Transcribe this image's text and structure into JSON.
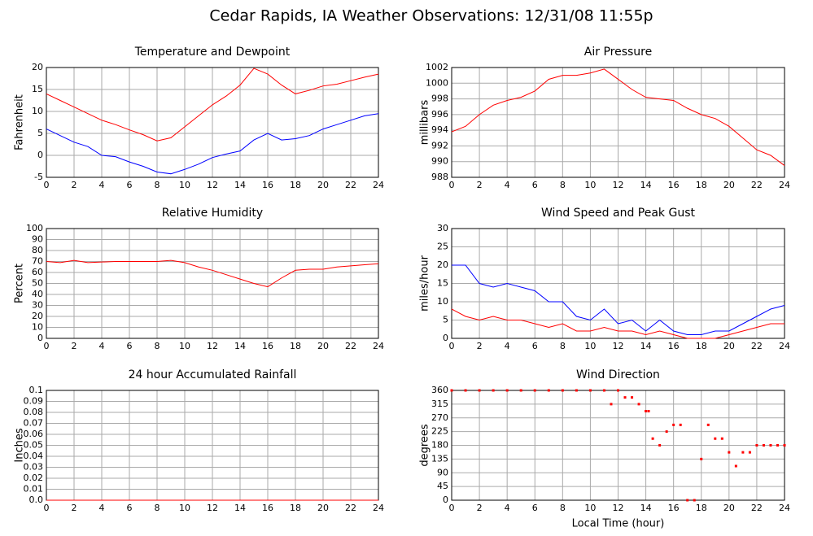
{
  "title": "Cedar Rapids, IA Weather Observations: 12/31/08 11:55p",
  "chart_data": [
    {
      "type": "line",
      "title": "Temperature and Dewpoint",
      "ylabel": "Fahrenheit",
      "x": [
        0,
        1,
        2,
        3,
        4,
        5,
        6,
        7,
        8,
        9,
        10,
        11,
        12,
        13,
        14,
        15,
        16,
        17,
        18,
        19,
        20,
        21,
        22,
        23,
        24
      ],
      "series": [
        {
          "color": "#ff0000",
          "values": [
            14,
            12.5,
            11,
            9.5,
            8,
            7,
            5.8,
            4.7,
            3.3,
            4,
            6.5,
            9,
            11.5,
            13.5,
            16,
            19.8,
            18.5,
            16,
            14,
            14.8,
            15.8,
            16.2,
            17,
            17.8,
            18.5
          ]
        },
        {
          "color": "#0000ff",
          "values": [
            6,
            4.5,
            3,
            2,
            0,
            -0.3,
            -1.5,
            -2.5,
            -3.8,
            -4.2,
            -3.2,
            -2,
            -0.5,
            0.3,
            1,
            3.5,
            5,
            3.5,
            3.8,
            4.5,
            6,
            7,
            8,
            9,
            9.5
          ]
        }
      ],
      "xlim": [
        0,
        24
      ],
      "xticks": [
        0,
        2,
        4,
        6,
        8,
        10,
        12,
        14,
        16,
        18,
        20,
        22,
        24
      ],
      "ylim": [
        -5,
        20
      ],
      "yticks": [
        -5,
        0,
        5,
        10,
        15,
        20
      ],
      "grid": true
    },
    {
      "type": "line",
      "title": "Air Pressure",
      "ylabel": "millibars",
      "x": [
        0,
        1,
        2,
        3,
        4,
        5,
        6,
        7,
        8,
        9,
        10,
        11,
        12,
        13,
        14,
        15,
        16,
        17,
        18,
        19,
        20,
        21,
        22,
        23,
        24
      ],
      "series": [
        {
          "color": "#ff0000",
          "values": [
            993.8,
            994.5,
            996,
            997.2,
            997.8,
            998.2,
            999,
            1000.5,
            1001,
            1001,
            1001.3,
            1001.8,
            1000.5,
            999.2,
            998.2,
            998,
            997.8,
            996.8,
            996,
            995.5,
            994.5,
            993,
            991.5,
            990.8,
            989.5
          ]
        }
      ],
      "xlim": [
        0,
        24
      ],
      "xticks": [
        0,
        2,
        4,
        6,
        8,
        10,
        12,
        14,
        16,
        18,
        20,
        22,
        24
      ],
      "ylim": [
        988,
        1002
      ],
      "yticks": [
        988,
        990,
        992,
        994,
        996,
        998,
        1000,
        1002
      ],
      "grid": true
    },
    {
      "type": "line",
      "title": "Relative Humidity",
      "ylabel": "Percent",
      "x": [
        0,
        1,
        2,
        3,
        4,
        5,
        6,
        7,
        8,
        9,
        10,
        11,
        12,
        13,
        14,
        15,
        16,
        17,
        18,
        19,
        20,
        21,
        22,
        23,
        24
      ],
      "series": [
        {
          "color": "#ff0000",
          "values": [
            70,
            69,
            71,
            69,
            69.5,
            70,
            70,
            70,
            70,
            71,
            69,
            65,
            62,
            58,
            54,
            50,
            47,
            55,
            62,
            63,
            63,
            65,
            66,
            67,
            68
          ]
        }
      ],
      "xlim": [
        0,
        24
      ],
      "xticks": [
        0,
        2,
        4,
        6,
        8,
        10,
        12,
        14,
        16,
        18,
        20,
        22,
        24
      ],
      "ylim": [
        0,
        100
      ],
      "yticks": [
        0,
        10,
        20,
        30,
        40,
        50,
        60,
        70,
        80,
        90,
        100
      ],
      "grid": true
    },
    {
      "type": "line",
      "title": "Wind Speed and Peak Gust",
      "ylabel": "miles/hour",
      "x": [
        0,
        1,
        2,
        3,
        4,
        5,
        6,
        7,
        8,
        9,
        10,
        11,
        12,
        13,
        14,
        15,
        16,
        17,
        18,
        19,
        20,
        21,
        22,
        23,
        24
      ],
      "series": [
        {
          "color": "#0000ff",
          "values": [
            20,
            20,
            15,
            14,
            15,
            14,
            13,
            10,
            10,
            6,
            5,
            8,
            4,
            5,
            2,
            5,
            2,
            1,
            1,
            2,
            2,
            4,
            6,
            8,
            9
          ]
        },
        {
          "color": "#ff0000",
          "values": [
            8,
            6,
            5,
            6,
            5,
            5,
            4,
            3,
            4,
            2,
            2,
            3,
            2,
            2,
            1,
            2,
            1,
            0,
            0,
            0,
            1,
            2,
            3,
            4,
            4
          ]
        }
      ],
      "xlim": [
        0,
        24
      ],
      "xticks": [
        0,
        2,
        4,
        6,
        8,
        10,
        12,
        14,
        16,
        18,
        20,
        22,
        24
      ],
      "ylim": [
        0,
        30
      ],
      "yticks": [
        0,
        5,
        10,
        15,
        20,
        25,
        30
      ],
      "grid": true
    },
    {
      "type": "line",
      "title": "24 hour Accumulated Rainfall",
      "ylabel": "Inches",
      "x": [
        0,
        24
      ],
      "series": [
        {
          "color": "#ff0000",
          "values": [
            0,
            0
          ]
        }
      ],
      "xlim": [
        0,
        24
      ],
      "xticks": [
        0,
        2,
        4,
        6,
        8,
        10,
        12,
        14,
        16,
        18,
        20,
        22,
        24
      ],
      "ylim": [
        0,
        0.1
      ],
      "yticks": [
        {
          "value": 0,
          "label": "0.0"
        },
        0.01,
        0.02,
        0.03,
        0.04,
        0.05,
        0.06,
        0.07,
        0.08,
        0.09,
        0.1
      ],
      "grid": true
    },
    {
      "type": "scatter",
      "title": "Wind Direction",
      "ylabel": "degrees",
      "xlabel": "Local Time (hour)",
      "x": [
        0,
        1,
        2,
        3,
        4,
        5,
        6,
        7,
        8,
        9,
        10,
        11,
        11.5,
        12,
        12.5,
        13,
        13.5,
        14,
        14.2,
        14.5,
        15,
        15.5,
        16,
        16.5,
        17,
        17.5,
        18,
        18.5,
        19,
        19.5,
        20,
        20.5,
        21,
        21.5,
        22,
        22.5,
        23,
        23.5,
        24
      ],
      "values": [
        360,
        360,
        360,
        360,
        360,
        360,
        360,
        360,
        360,
        360,
        360,
        360,
        315,
        360,
        337,
        337,
        315,
        292,
        292,
        202,
        180,
        225,
        247,
        247,
        0,
        0,
        135,
        247,
        202,
        202,
        157,
        112,
        157,
        157,
        180,
        180,
        180,
        180,
        180
      ],
      "color": "#ff0000",
      "xlim": [
        0,
        24
      ],
      "xticks": [
        0,
        2,
        4,
        6,
        8,
        10,
        12,
        14,
        16,
        18,
        20,
        22,
        24
      ],
      "ylim": [
        0,
        360
      ],
      "yticks": [
        0,
        45,
        90,
        135,
        180,
        225,
        270,
        315,
        360
      ],
      "grid": true
    }
  ]
}
